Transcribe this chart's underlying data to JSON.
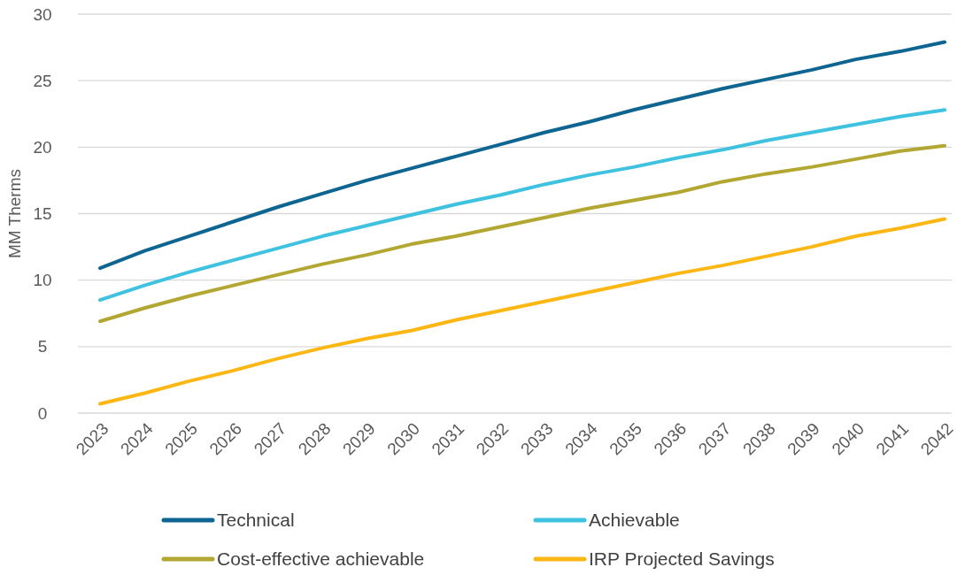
{
  "chart_data": {
    "type": "line",
    "ylabel": "MM Therms",
    "categories": [
      "2023",
      "2024",
      "2025",
      "2026",
      "2027",
      "2028",
      "2029",
      "2030",
      "2031",
      "2032",
      "2033",
      "2034",
      "2035",
      "2036",
      "2037",
      "2038",
      "2039",
      "2040",
      "2041",
      "2042"
    ],
    "ylim": [
      0,
      30
    ],
    "yticks": [
      0,
      5,
      10,
      15,
      20,
      25,
      30
    ],
    "grid": "y",
    "legend": "bottom",
    "marker": "none",
    "line_style": "solid",
    "series": [
      {
        "name": "Technical",
        "color": "#0e6591",
        "values": [
          10.9,
          12.2,
          13.3,
          14.4,
          15.5,
          16.5,
          17.5,
          18.4,
          19.3,
          20.2,
          21.1,
          21.9,
          22.8,
          23.6,
          24.4,
          25.1,
          25.8,
          26.6,
          27.2,
          27.9
        ]
      },
      {
        "name": "Achievable",
        "color": "#3fc1e0",
        "values": [
          8.5,
          9.6,
          10.6,
          11.5,
          12.4,
          13.3,
          14.1,
          14.9,
          15.7,
          16.4,
          17.2,
          17.9,
          18.5,
          19.2,
          19.8,
          20.5,
          21.1,
          21.7,
          22.3,
          22.8
        ]
      },
      {
        "name": "Cost-effective achievable",
        "color": "#b3a733",
        "values": [
          6.9,
          7.9,
          8.8,
          9.6,
          10.4,
          11.2,
          11.9,
          12.7,
          13.3,
          14.0,
          14.7,
          15.4,
          16.0,
          16.6,
          17.4,
          18.0,
          18.5,
          19.1,
          19.7,
          20.1
        ]
      },
      {
        "name": "IRP Projected Savings",
        "color": "#fdb715",
        "values": [
          0.7,
          1.5,
          2.4,
          3.2,
          4.1,
          4.9,
          5.6,
          6.2,
          7.0,
          7.7,
          8.4,
          9.1,
          9.8,
          10.5,
          11.1,
          11.8,
          12.5,
          13.3,
          13.9,
          14.6
        ]
      }
    ]
  }
}
